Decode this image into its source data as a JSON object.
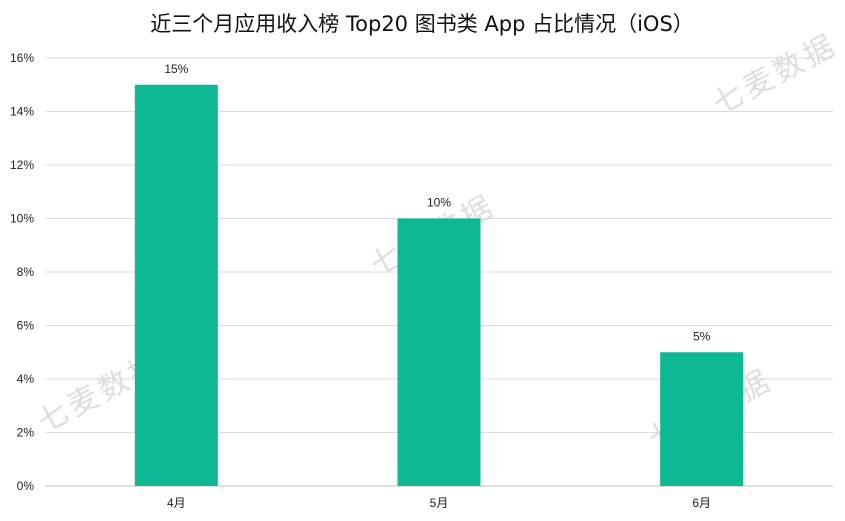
{
  "watermark": "七麦数据",
  "chart_data": {
    "type": "bar",
    "title": "近三个月应用收入榜 Top20 图书类 App 占比情况（iOS）",
    "categories": [
      "4月",
      "5月",
      "6月"
    ],
    "values": [
      15,
      10,
      5
    ],
    "data_labels": [
      "15%",
      "10%",
      "5%"
    ],
    "ylim": [
      0,
      16
    ],
    "yticks": [
      0,
      2,
      4,
      6,
      8,
      10,
      12,
      14,
      16
    ],
    "ytick_labels": [
      "0%",
      "2%",
      "4%",
      "6%",
      "8%",
      "10%",
      "12%",
      "14%",
      "16%"
    ],
    "bar_color": "#0db893",
    "grid": true,
    "legend": "none"
  }
}
